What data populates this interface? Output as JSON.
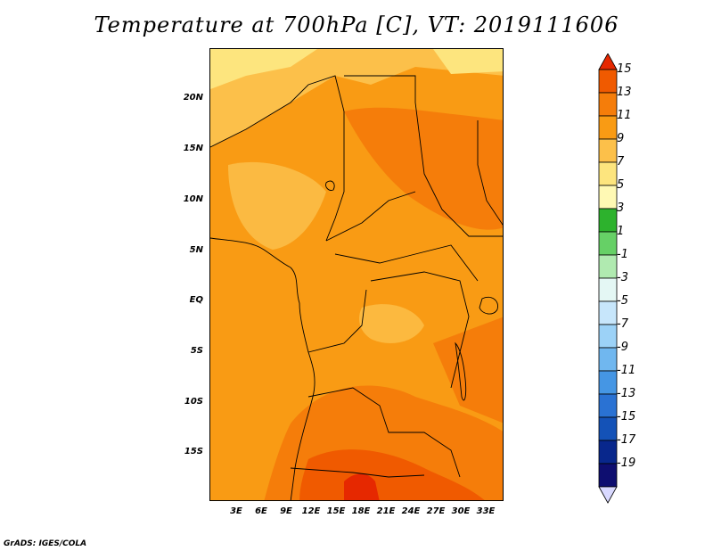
{
  "title": "Temperature at 700hPa [C], VT: 2019111606",
  "credit": "GrADS: IGES/COLA",
  "lat_labels": [
    "20N",
    "15N",
    "10N",
    "5N",
    "EQ",
    "5S",
    "10S",
    "15S"
  ],
  "lon_labels": [
    "3E",
    "6E",
    "9E",
    "12E",
    "15E",
    "18E",
    "21E",
    "24E",
    "27E",
    "30E",
    "33E"
  ],
  "colorbar": {
    "labels": [
      "15",
      "13",
      "11",
      "9",
      "7",
      "5",
      "3",
      "1",
      "-1",
      "-3",
      "-5",
      "-7",
      "-9",
      "-11",
      "-13",
      "-15",
      "-17",
      "-19"
    ],
    "colors": [
      "#e62800",
      "#f05a00",
      "#f57d0a",
      "#f99b14",
      "#fcc04a",
      "#fde57e",
      "#fff9b4",
      "#2db22d",
      "#66d066",
      "#b0eab0",
      "#e4f7f4",
      "#c7e6fb",
      "#9cd2f7",
      "#70b7ef",
      "#4596e4",
      "#2a72d3",
      "#1452b7",
      "#08278c",
      "#0e0e70",
      "#d9d9ff"
    ]
  },
  "colors": {
    "field_base": "#f99b14",
    "warm_region": "#f57d0a",
    "hot_region": "#f05a00",
    "hottest_region": "#e62800",
    "cool_region": "#fcc04a",
    "coolest_region": "#fde57e"
  }
}
